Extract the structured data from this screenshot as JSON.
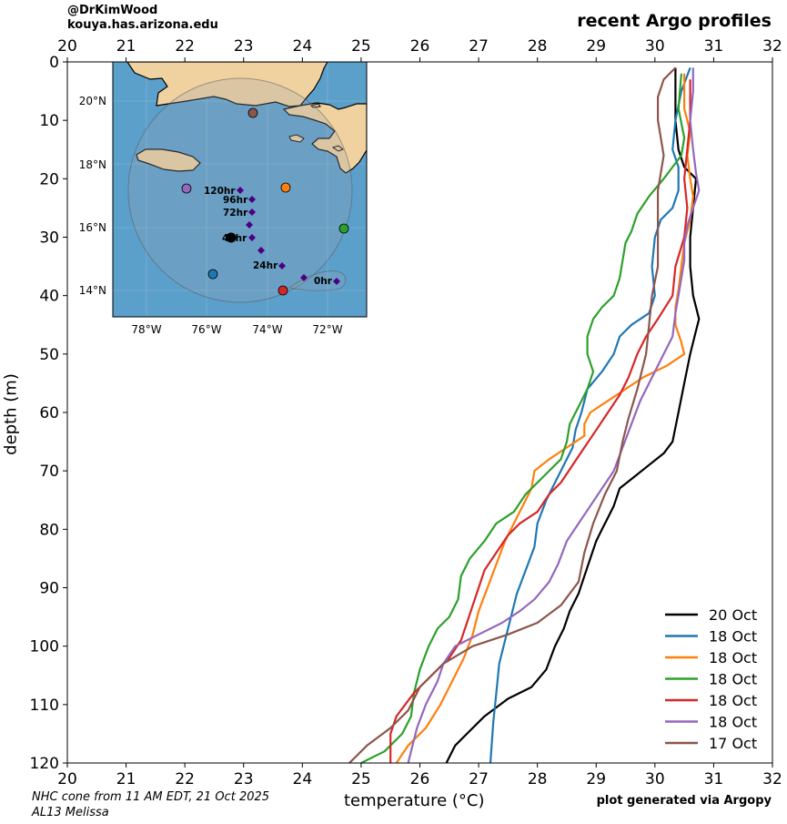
{
  "header": {
    "credit_handle": "@DrKimWood",
    "credit_site": "kouya.has.arizona.edu",
    "title": "recent Argo profiles"
  },
  "footer": {
    "nhc_note": "NHC cone from 11 AM EDT, 21 Oct 2025",
    "storm": "AL13 Melissa",
    "generated": "plot generated via Argopy"
  },
  "chart_data": {
    "type": "line",
    "xlabel": "temperature (°C)",
    "ylabel": "depth (m)",
    "xlim": [
      20,
      32
    ],
    "ylim": [
      120,
      0
    ],
    "x_ticks": [
      20,
      21,
      22,
      23,
      24,
      25,
      26,
      27,
      28,
      29,
      30,
      31,
      32
    ],
    "y_ticks": [
      0,
      10,
      20,
      30,
      40,
      50,
      60,
      70,
      80,
      90,
      100,
      110,
      120
    ],
    "legend_position": "lower-right",
    "series": [
      {
        "name": "20 Oct",
        "color": "#000000",
        "points": [
          [
            30.35,
            1
          ],
          [
            30.35,
            5
          ],
          [
            30.35,
            10
          ],
          [
            30.4,
            15
          ],
          [
            30.5,
            18
          ],
          [
            30.7,
            20
          ],
          [
            30.65,
            25
          ],
          [
            30.6,
            30
          ],
          [
            30.6,
            35
          ],
          [
            30.65,
            40
          ],
          [
            30.75,
            44
          ],
          [
            30.7,
            46
          ],
          [
            30.6,
            50
          ],
          [
            30.5,
            55
          ],
          [
            30.4,
            60
          ],
          [
            30.3,
            65
          ],
          [
            30.15,
            67
          ],
          [
            29.9,
            69
          ],
          [
            29.65,
            71
          ],
          [
            29.4,
            73
          ],
          [
            29.3,
            76
          ],
          [
            29.2,
            78
          ],
          [
            29.1,
            80
          ],
          [
            29.0,
            82
          ],
          [
            28.9,
            85
          ],
          [
            28.8,
            88
          ],
          [
            28.7,
            91
          ],
          [
            28.55,
            94
          ],
          [
            28.45,
            97
          ],
          [
            28.3,
            100
          ],
          [
            28.15,
            104
          ],
          [
            27.9,
            107
          ],
          [
            27.5,
            109
          ],
          [
            27.1,
            112
          ],
          [
            26.8,
            115
          ],
          [
            26.6,
            117
          ],
          [
            26.45,
            120
          ]
        ]
      },
      {
        "name": "18 Oct",
        "color": "#1f77b4",
        "points": [
          [
            30.6,
            1
          ],
          [
            30.45,
            5
          ],
          [
            30.35,
            10
          ],
          [
            30.3,
            15
          ],
          [
            30.4,
            18
          ],
          [
            30.4,
            22
          ],
          [
            30.3,
            25
          ],
          [
            30.1,
            27
          ],
          [
            30.0,
            30
          ],
          [
            29.95,
            35
          ],
          [
            30.0,
            40
          ],
          [
            29.9,
            43
          ],
          [
            29.6,
            45
          ],
          [
            29.4,
            47
          ],
          [
            29.3,
            50
          ],
          [
            29.1,
            53
          ],
          [
            28.85,
            56
          ],
          [
            28.75,
            60
          ],
          [
            28.65,
            63
          ],
          [
            28.6,
            66
          ],
          [
            28.45,
            69
          ],
          [
            28.3,
            72
          ],
          [
            28.15,
            75
          ],
          [
            28.0,
            79
          ],
          [
            27.95,
            83
          ],
          [
            27.8,
            87
          ],
          [
            27.65,
            91
          ],
          [
            27.55,
            95
          ],
          [
            27.45,
            99
          ],
          [
            27.35,
            103
          ],
          [
            27.3,
            108
          ],
          [
            27.25,
            113
          ],
          [
            27.2,
            120
          ]
        ]
      },
      {
        "name": "18 Oct",
        "color": "#ff7f0e",
        "points": [
          [
            30.5,
            2
          ],
          [
            30.5,
            8
          ],
          [
            30.6,
            12
          ],
          [
            30.55,
            16
          ],
          [
            30.6,
            20
          ],
          [
            30.65,
            23
          ],
          [
            30.6,
            27
          ],
          [
            30.5,
            31
          ],
          [
            30.45,
            35
          ],
          [
            30.4,
            39
          ],
          [
            30.35,
            42
          ],
          [
            30.35,
            45
          ],
          [
            30.45,
            48
          ],
          [
            30.5,
            50
          ],
          [
            30.2,
            52
          ],
          [
            29.8,
            54
          ],
          [
            29.5,
            56
          ],
          [
            29.2,
            58
          ],
          [
            28.9,
            60
          ],
          [
            28.8,
            62
          ],
          [
            28.8,
            64
          ],
          [
            28.5,
            66
          ],
          [
            28.2,
            68
          ],
          [
            27.95,
            70
          ],
          [
            27.9,
            73
          ],
          [
            27.75,
            76
          ],
          [
            27.6,
            79
          ],
          [
            27.45,
            82
          ],
          [
            27.3,
            86
          ],
          [
            27.15,
            90
          ],
          [
            27.0,
            94
          ],
          [
            26.9,
            98
          ],
          [
            26.75,
            102
          ],
          [
            26.55,
            106
          ],
          [
            26.35,
            110
          ],
          [
            26.1,
            114
          ],
          [
            25.8,
            117
          ],
          [
            25.6,
            120
          ]
        ]
      },
      {
        "name": "18 Oct",
        "color": "#2ca02c",
        "points": [
          [
            30.45,
            2
          ],
          [
            30.4,
            8
          ],
          [
            30.5,
            13
          ],
          [
            30.45,
            16
          ],
          [
            30.3,
            18
          ],
          [
            30.15,
            20
          ],
          [
            29.9,
            23
          ],
          [
            29.7,
            26
          ],
          [
            29.6,
            29
          ],
          [
            29.5,
            31
          ],
          [
            29.45,
            34
          ],
          [
            29.4,
            37
          ],
          [
            29.3,
            40
          ],
          [
            29.1,
            42
          ],
          [
            28.95,
            44
          ],
          [
            28.85,
            47
          ],
          [
            28.85,
            50
          ],
          [
            28.95,
            53
          ],
          [
            28.85,
            56
          ],
          [
            28.7,
            59
          ],
          [
            28.55,
            62
          ],
          [
            28.5,
            65
          ],
          [
            28.4,
            68
          ],
          [
            28.1,
            71
          ],
          [
            27.8,
            74
          ],
          [
            27.6,
            77
          ],
          [
            27.3,
            79
          ],
          [
            27.1,
            82
          ],
          [
            26.85,
            85
          ],
          [
            26.7,
            88
          ],
          [
            26.65,
            92
          ],
          [
            26.5,
            95
          ],
          [
            26.3,
            97
          ],
          [
            26.15,
            100
          ],
          [
            26.0,
            104
          ],
          [
            25.9,
            108
          ],
          [
            25.85,
            112
          ],
          [
            25.7,
            115
          ],
          [
            25.4,
            118
          ],
          [
            25.0,
            120
          ]
        ]
      },
      {
        "name": "18 Oct",
        "color": "#d62728",
        "points": [
          [
            30.6,
            3
          ],
          [
            30.6,
            10
          ],
          [
            30.55,
            15
          ],
          [
            30.5,
            20
          ],
          [
            30.55,
            25
          ],
          [
            30.5,
            30
          ],
          [
            30.35,
            35
          ],
          [
            30.3,
            40
          ],
          [
            30.05,
            44
          ],
          [
            29.85,
            47
          ],
          [
            29.7,
            50
          ],
          [
            29.55,
            54
          ],
          [
            29.4,
            57
          ],
          [
            29.2,
            60
          ],
          [
            29.0,
            63
          ],
          [
            28.8,
            66
          ],
          [
            28.6,
            69
          ],
          [
            28.4,
            72
          ],
          [
            28.2,
            74
          ],
          [
            28.0,
            77
          ],
          [
            27.7,
            79
          ],
          [
            27.5,
            81
          ],
          [
            27.3,
            84
          ],
          [
            27.1,
            87
          ],
          [
            27.0,
            90
          ],
          [
            26.9,
            93
          ],
          [
            26.8,
            96
          ],
          [
            26.7,
            99
          ],
          [
            26.5,
            102
          ],
          [
            26.2,
            105
          ],
          [
            25.9,
            108
          ],
          [
            25.6,
            112
          ],
          [
            25.5,
            115
          ],
          [
            25.5,
            120
          ]
        ]
      },
      {
        "name": "18 Oct",
        "color": "#9467bd",
        "points": [
          [
            30.65,
            1
          ],
          [
            30.65,
            5
          ],
          [
            30.6,
            10
          ],
          [
            30.65,
            15
          ],
          [
            30.7,
            19
          ],
          [
            30.75,
            22
          ],
          [
            30.65,
            25
          ],
          [
            30.55,
            28
          ],
          [
            30.5,
            31
          ],
          [
            30.5,
            34
          ],
          [
            30.45,
            37
          ],
          [
            30.4,
            40
          ],
          [
            30.35,
            43
          ],
          [
            30.3,
            47
          ],
          [
            30.15,
            50
          ],
          [
            29.95,
            54
          ],
          [
            29.75,
            58
          ],
          [
            29.6,
            62
          ],
          [
            29.45,
            66
          ],
          [
            29.3,
            70
          ],
          [
            29.1,
            73
          ],
          [
            28.9,
            76
          ],
          [
            28.7,
            79
          ],
          [
            28.5,
            82
          ],
          [
            28.35,
            86
          ],
          [
            28.2,
            89
          ],
          [
            27.95,
            92
          ],
          [
            27.7,
            94
          ],
          [
            27.4,
            96
          ],
          [
            27.0,
            98
          ],
          [
            26.6,
            100
          ],
          [
            26.4,
            103
          ],
          [
            26.3,
            106
          ],
          [
            26.1,
            110
          ],
          [
            25.95,
            114
          ],
          [
            25.85,
            118
          ],
          [
            25.8,
            120
          ]
        ]
      },
      {
        "name": "17 Oct",
        "color": "#8c564b",
        "points": [
          [
            30.35,
            1
          ],
          [
            30.15,
            3
          ],
          [
            30.05,
            6
          ],
          [
            30.05,
            10
          ],
          [
            30.1,
            13
          ],
          [
            30.15,
            16
          ],
          [
            30.1,
            19
          ],
          [
            30.05,
            22
          ],
          [
            30.05,
            26
          ],
          [
            30.05,
            30
          ],
          [
            30.05,
            35
          ],
          [
            29.95,
            40
          ],
          [
            29.9,
            45
          ],
          [
            29.85,
            50
          ],
          [
            29.7,
            56
          ],
          [
            29.55,
            61
          ],
          [
            29.45,
            65
          ],
          [
            29.35,
            70
          ],
          [
            29.15,
            74
          ],
          [
            28.95,
            79
          ],
          [
            28.8,
            84
          ],
          [
            28.7,
            89
          ],
          [
            28.4,
            93
          ],
          [
            28.0,
            96
          ],
          [
            27.5,
            98
          ],
          [
            26.9,
            100
          ],
          [
            26.4,
            103
          ],
          [
            26.0,
            107
          ],
          [
            25.8,
            111
          ],
          [
            25.5,
            114
          ],
          [
            25.1,
            117
          ],
          [
            24.8,
            120
          ]
        ]
      }
    ]
  },
  "inset_map": {
    "lat_labels": [
      "20°N",
      "18°N",
      "16°N",
      "14°N"
    ],
    "lon_labels": [
      "78°W",
      "76°W",
      "74°W",
      "72°W"
    ],
    "forecast_labels": [
      "120hr",
      "96hr",
      "72hr",
      "48hr",
      "24hr",
      "0hr"
    ],
    "ocean_color": "#5b9fcb",
    "land_color": "#f0d2a0"
  }
}
